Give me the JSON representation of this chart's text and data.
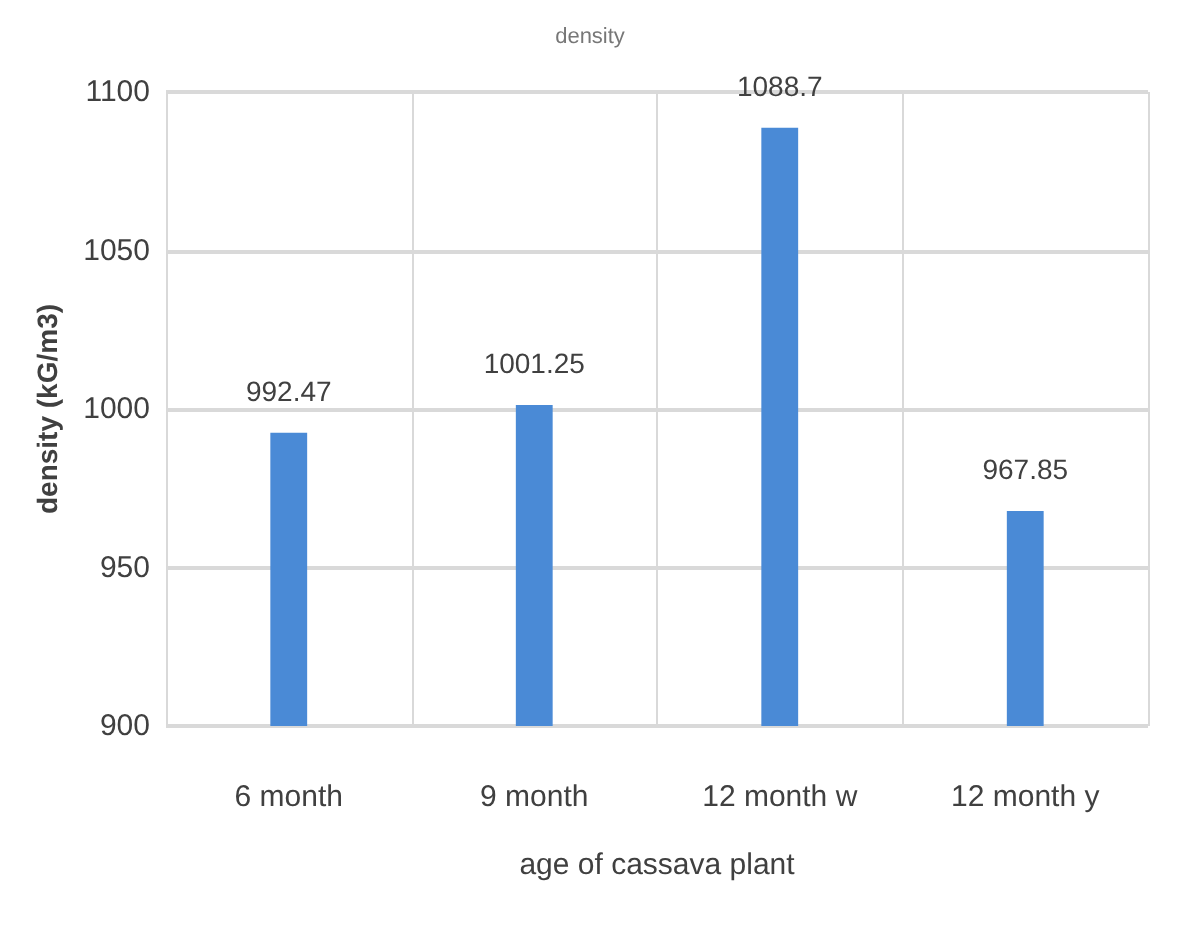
{
  "chart_data": {
    "type": "bar",
    "title": "density",
    "xlabel": "age of cassava plant",
    "ylabel": "density (kG/m3)",
    "categories": [
      "6 month",
      "9 month",
      "12 month w",
      "12 month y"
    ],
    "values": [
      992.47,
      1001.25,
      1088.7,
      967.85
    ],
    "color": "#4a8ad6",
    "ylim": [
      900,
      1100
    ],
    "yticks": [
      900,
      950,
      1000,
      1050,
      1100
    ],
    "grid": true,
    "data_labels": true
  }
}
